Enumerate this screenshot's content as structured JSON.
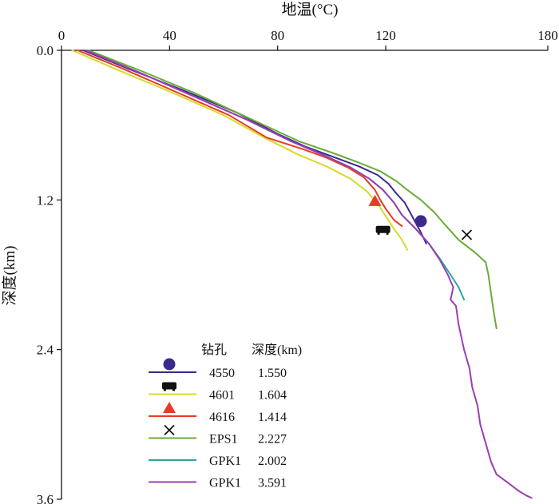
{
  "chart_data": {
    "type": "line",
    "title": "",
    "xlabel": "地温(°C)",
    "ylabel": "深度(km)",
    "xlim": [
      0,
      180
    ],
    "ylim": [
      0,
      3.6
    ],
    "x_ticks": [
      "0",
      "40",
      "80",
      "120",
      "180"
    ],
    "x_tick_values": [
      0,
      40,
      80,
      120,
      180
    ],
    "y_ticks": [
      "0.0",
      "1.2",
      "2.4",
      "3.6"
    ],
    "y_tick_values": [
      0,
      1.2,
      2.4,
      3.6
    ],
    "y_inverted": true,
    "x_axis_position": "top",
    "legend": {
      "position": "bottom-left",
      "header_col1": "钻孔",
      "header_col2": "深度(km)"
    },
    "series": [
      {
        "name": "4550",
        "depth_label": "1.550",
        "color": "#3b2a8c",
        "marker": "circle",
        "marker_point": [
          133,
          1.37
        ],
        "points": [
          [
            8,
            0
          ],
          [
            25,
            0.15
          ],
          [
            45,
            0.32
          ],
          [
            65,
            0.5
          ],
          [
            80,
            0.67
          ],
          [
            90,
            0.77
          ],
          [
            100,
            0.85
          ],
          [
            110,
            0.93
          ],
          [
            117,
            1.0
          ],
          [
            121,
            1.07
          ],
          [
            124,
            1.15
          ],
          [
            127,
            1.22
          ],
          [
            129,
            1.3
          ],
          [
            131,
            1.38
          ],
          [
            133,
            1.46
          ],
          [
            135,
            1.55
          ]
        ]
      },
      {
        "name": "4601",
        "depth_label": "1.604",
        "color": "#d9d92a",
        "marker": "bus",
        "marker_point": [
          119,
          1.44
        ],
        "points": [
          [
            4,
            0
          ],
          [
            20,
            0.15
          ],
          [
            40,
            0.33
          ],
          [
            60,
            0.52
          ],
          [
            75,
            0.7
          ],
          [
            88,
            0.84
          ],
          [
            98,
            0.93
          ],
          [
            107,
            1.03
          ],
          [
            113,
            1.13
          ],
          [
            117,
            1.23
          ],
          [
            120,
            1.33
          ],
          [
            123,
            1.43
          ],
          [
            126,
            1.52
          ],
          [
            128,
            1.6
          ]
        ]
      },
      {
        "name": "4616",
        "depth_label": "1.414",
        "color": "#e83a24",
        "marker": "triangle",
        "marker_point": [
          116,
          1.21
        ],
        "points": [
          [
            6,
            0
          ],
          [
            23,
            0.15
          ],
          [
            42,
            0.33
          ],
          [
            62,
            0.52
          ],
          [
            76,
            0.7
          ],
          [
            89,
            0.79
          ],
          [
            98,
            0.86
          ],
          [
            106,
            0.94
          ],
          [
            112,
            1.02
          ],
          [
            116,
            1.12
          ],
          [
            118,
            1.2
          ],
          [
            120,
            1.27
          ],
          [
            123,
            1.36
          ],
          [
            126,
            1.41
          ]
        ]
      },
      {
        "name": "EPS1",
        "depth_label": "2.227",
        "color": "#6aac35",
        "marker": "x",
        "marker_point": [
          150,
          1.48
        ],
        "points": [
          [
            10,
            0
          ],
          [
            30,
            0.17
          ],
          [
            50,
            0.35
          ],
          [
            70,
            0.55
          ],
          [
            88,
            0.73
          ],
          [
            100,
            0.82
          ],
          [
            110,
            0.9
          ],
          [
            118,
            0.97
          ],
          [
            124,
            1.05
          ],
          [
            128,
            1.12
          ],
          [
            133,
            1.2
          ],
          [
            138,
            1.3
          ],
          [
            142,
            1.4
          ],
          [
            147,
            1.52
          ],
          [
            153,
            1.62
          ],
          [
            157,
            1.7
          ],
          [
            158,
            1.8
          ],
          [
            159,
            1.95
          ],
          [
            160,
            2.1
          ],
          [
            161,
            2.23
          ]
        ]
      },
      {
        "name": "GPK1",
        "depth_label": "2.002",
        "color": "#2aa6a0",
        "marker": "none",
        "points": [
          [
            9,
            0
          ],
          [
            28,
            0.17
          ],
          [
            48,
            0.36
          ],
          [
            68,
            0.55
          ],
          [
            85,
            0.73
          ],
          [
            97,
            0.84
          ],
          [
            107,
            0.94
          ],
          [
            114,
            1.03
          ],
          [
            119,
            1.12
          ],
          [
            123,
            1.22
          ],
          [
            126,
            1.32
          ],
          [
            131,
            1.43
          ],
          [
            136,
            1.55
          ],
          [
            140,
            1.67
          ],
          [
            144,
            1.8
          ],
          [
            147,
            1.9
          ],
          [
            149,
            2.0
          ]
        ]
      },
      {
        "name": "GPK1",
        "depth_label": "3.591",
        "color": "#9a3fb0",
        "marker": "none",
        "points": [
          [
            9,
            0
          ],
          [
            28,
            0.17
          ],
          [
            48,
            0.36
          ],
          [
            68,
            0.55
          ],
          [
            85,
            0.73
          ],
          [
            97,
            0.84
          ],
          [
            107,
            0.94
          ],
          [
            114,
            1.03
          ],
          [
            119,
            1.12
          ],
          [
            123,
            1.22
          ],
          [
            126,
            1.32
          ],
          [
            131,
            1.43
          ],
          [
            136,
            1.55
          ],
          [
            140,
            1.68
          ],
          [
            143,
            1.8
          ],
          [
            145,
            1.9
          ],
          [
            144,
            2.0
          ],
          [
            146,
            2.05
          ],
          [
            147,
            2.2
          ],
          [
            149,
            2.4
          ],
          [
            151,
            2.55
          ],
          [
            152,
            2.7
          ],
          [
            154,
            2.85
          ],
          [
            155,
            3.0
          ],
          [
            157,
            3.15
          ],
          [
            159,
            3.3
          ],
          [
            161,
            3.4
          ],
          [
            166,
            3.48
          ],
          [
            169,
            3.53
          ],
          [
            172,
            3.57
          ],
          [
            174,
            3.59
          ]
        ]
      }
    ]
  }
}
